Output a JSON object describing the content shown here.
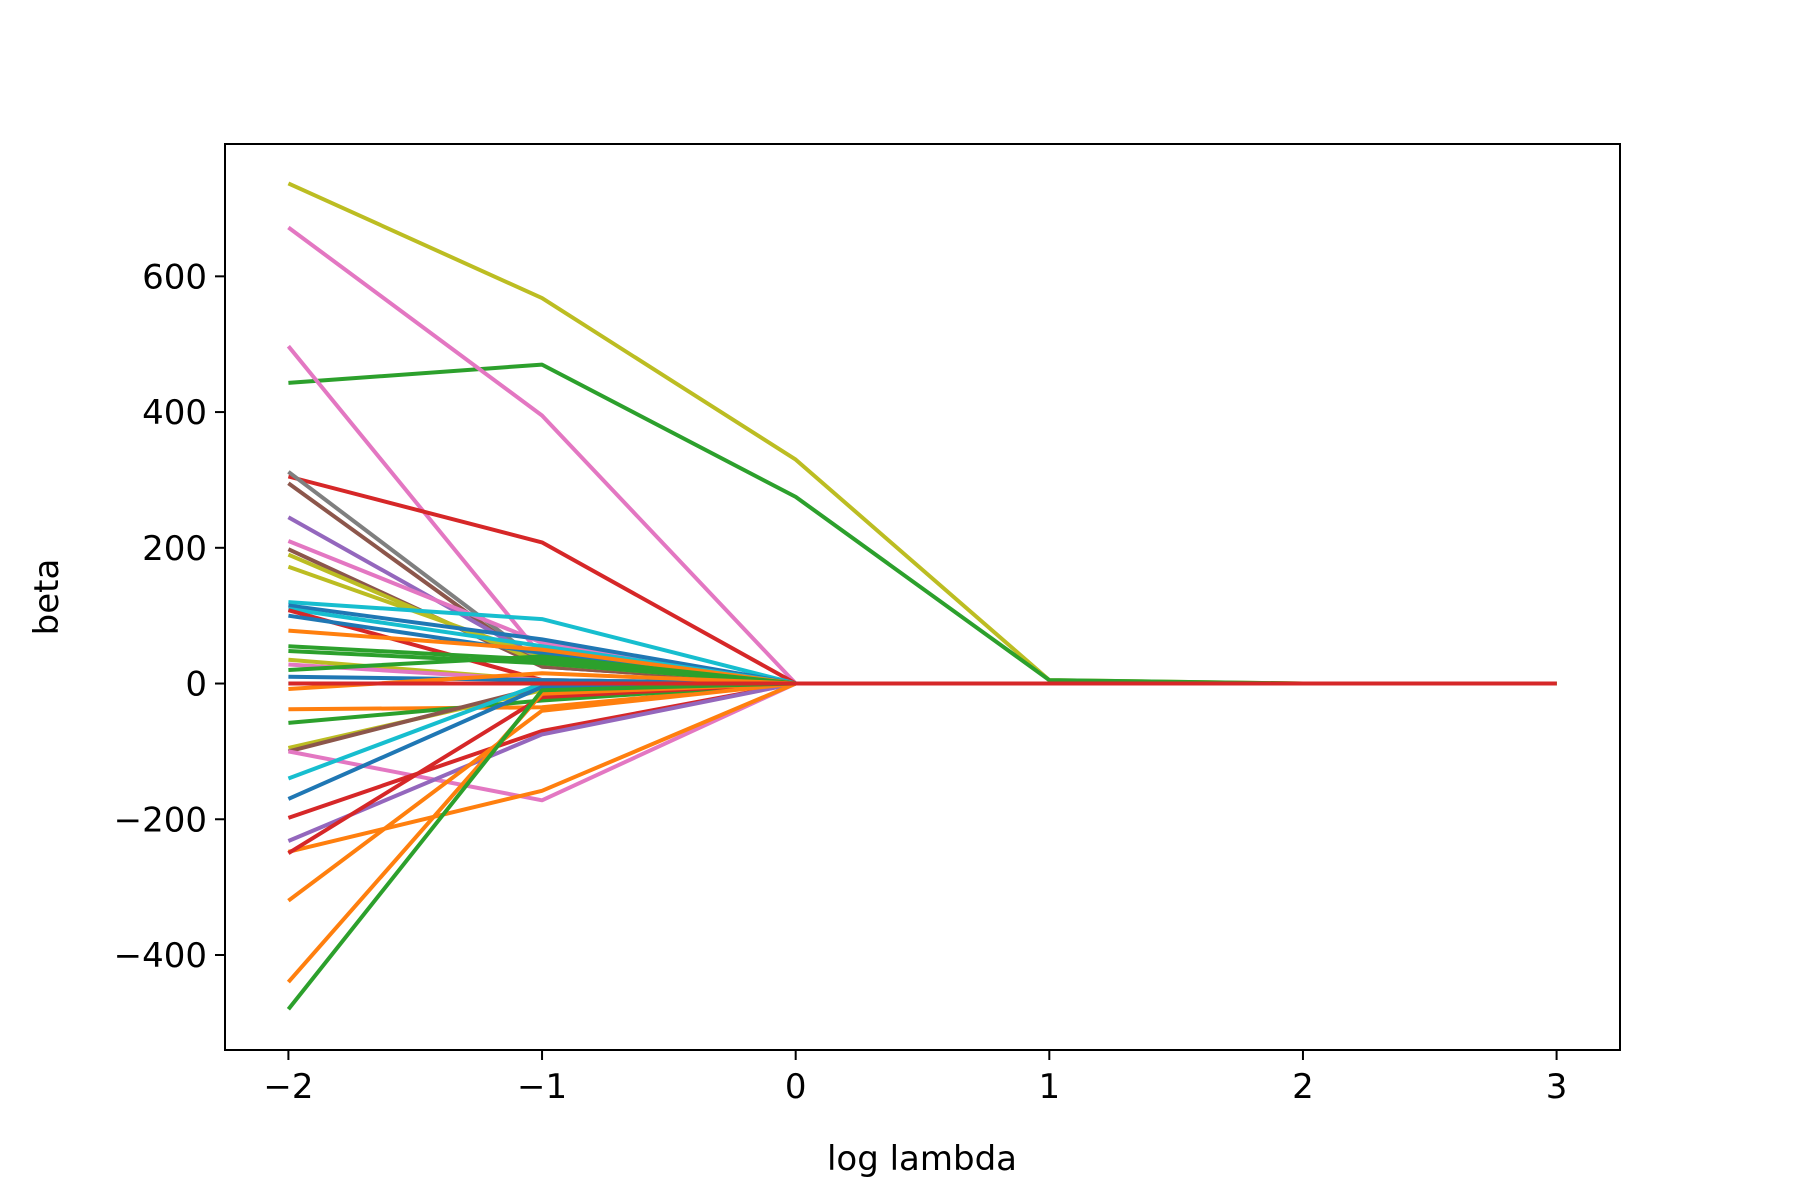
{
  "chart_data": {
    "type": "line",
    "title": "",
    "xlabel": "log lambda",
    "ylabel": "beta",
    "x": [
      -2,
      -1,
      0,
      1,
      2,
      3
    ],
    "xlim": [
      -2.25,
      3.25
    ],
    "ylim": [
      -540,
      795
    ],
    "xticks": [
      -2,
      -1,
      0,
      1,
      2,
      3
    ],
    "xtick_labels": [
      "−2",
      "−1",
      "0",
      "1",
      "2",
      "3"
    ],
    "yticks": [
      -400,
      -200,
      0,
      200,
      400,
      600
    ],
    "ytick_labels": [
      "−400",
      "−200",
      "0",
      "200",
      "400",
      "600"
    ],
    "grid": false,
    "legend": "none",
    "series": [
      {
        "color": "#bcbd22",
        "values": [
          737,
          568,
          330,
          5,
          0,
          0
        ]
      },
      {
        "color": "#2ca02c",
        "values": [
          443,
          470,
          275,
          5,
          0,
          0
        ]
      },
      {
        "color": "#e377c2",
        "values": [
          672,
          395,
          0,
          0,
          0,
          0
        ]
      },
      {
        "color": "#e377c2",
        "values": [
          497,
          40,
          0,
          0,
          0,
          0
        ]
      },
      {
        "color": "#d62728",
        "values": [
          305,
          208,
          0,
          0,
          0,
          0
        ]
      },
      {
        "color": "#7f7f7f",
        "values": [
          312,
          30,
          0,
          0,
          0,
          0
        ]
      },
      {
        "color": "#8c564b",
        "values": [
          295,
          25,
          0,
          0,
          0,
          0
        ]
      },
      {
        "color": "#9467bd",
        "values": [
          245,
          35,
          0,
          0,
          0,
          0
        ]
      },
      {
        "color": "#e377c2",
        "values": [
          210,
          60,
          0,
          0,
          0,
          0
        ]
      },
      {
        "color": "#8c564b",
        "values": [
          198,
          25,
          0,
          0,
          0,
          0
        ]
      },
      {
        "color": "#bcbd22",
        "values": [
          190,
          30,
          0,
          0,
          0,
          0
        ]
      },
      {
        "color": "#bcbd22",
        "values": [
          172,
          40,
          0,
          0,
          0,
          0
        ]
      },
      {
        "color": "#17becf",
        "values": [
          120,
          95,
          0,
          0,
          0,
          0
        ]
      },
      {
        "color": "#1f77b4",
        "values": [
          115,
          65,
          0,
          0,
          0,
          0
        ]
      },
      {
        "color": "#17becf",
        "values": [
          110,
          55,
          0,
          0,
          0,
          0
        ]
      },
      {
        "color": "#d62728",
        "values": [
          108,
          5,
          0,
          0,
          0,
          0
        ]
      },
      {
        "color": "#1f77b4",
        "values": [
          100,
          45,
          0,
          0,
          0,
          0
        ]
      },
      {
        "color": "#ff7f0e",
        "values": [
          78,
          50,
          0,
          0,
          0,
          0
        ]
      },
      {
        "color": "#2ca02c",
        "values": [
          55,
          35,
          0,
          0,
          0,
          0
        ]
      },
      {
        "color": "#2ca02c",
        "values": [
          48,
          30,
          0,
          0,
          0,
          0
        ]
      },
      {
        "color": "#bcbd22",
        "values": [
          35,
          5,
          0,
          0,
          0,
          0
        ]
      },
      {
        "color": "#e377c2",
        "values": [
          28,
          5,
          0,
          0,
          0,
          0
        ]
      },
      {
        "color": "#2ca02c",
        "values": [
          20,
          40,
          0,
          0,
          0,
          0
        ]
      },
      {
        "color": "#1f77b4",
        "values": [
          10,
          5,
          0,
          0,
          0,
          0
        ]
      },
      {
        "color": "#17becf",
        "values": [
          0,
          0,
          0,
          0,
          0,
          0
        ]
      },
      {
        "color": "#ff7f0e",
        "values": [
          -8,
          15,
          0,
          0,
          0,
          0
        ]
      },
      {
        "color": "#ff7f0e",
        "values": [
          -38,
          -35,
          0,
          0,
          0,
          0
        ]
      },
      {
        "color": "#2ca02c",
        "values": [
          -58,
          -25,
          0,
          0,
          0,
          0
        ]
      },
      {
        "color": "#bcbd22",
        "values": [
          -95,
          -10,
          0,
          0,
          0,
          0
        ]
      },
      {
        "color": "#8c564b",
        "values": [
          -100,
          -5,
          0,
          0,
          0,
          0
        ]
      },
      {
        "color": "#e377c2",
        "values": [
          -100,
          -172,
          0,
          0,
          0,
          0
        ]
      },
      {
        "color": "#17becf",
        "values": [
          -140,
          0,
          0,
          0,
          0,
          0
        ]
      },
      {
        "color": "#1f77b4",
        "values": [
          -170,
          -5,
          0,
          0,
          0,
          0
        ]
      },
      {
        "color": "#d62728",
        "values": [
          -198,
          -70,
          0,
          0,
          0,
          0
        ]
      },
      {
        "color": "#9467bd",
        "values": [
          -232,
          -75,
          0,
          0,
          0,
          0
        ]
      },
      {
        "color": "#ff7f0e",
        "values": [
          -248,
          -158,
          0,
          0,
          0,
          0
        ]
      },
      {
        "color": "#d62728",
        "values": [
          -250,
          -20,
          0,
          0,
          0,
          0
        ]
      },
      {
        "color": "#ff7f0e",
        "values": [
          -320,
          -40,
          0,
          0,
          0,
          0
        ]
      },
      {
        "color": "#ff7f0e",
        "values": [
          -440,
          -15,
          0,
          0,
          0,
          0
        ]
      },
      {
        "color": "#2ca02c",
        "values": [
          -480,
          -10,
          0,
          0,
          0,
          0
        ]
      },
      {
        "color": "#d62728",
        "values": [
          0,
          0,
          0,
          0,
          0,
          0
        ]
      }
    ]
  }
}
